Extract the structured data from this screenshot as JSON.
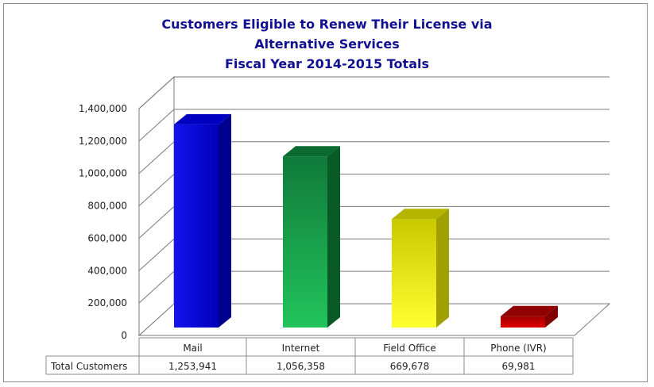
{
  "chart_data": {
    "type": "bar",
    "title_lines": [
      "Customers Eligible to Renew Their License via",
      "Alternative Services",
      "Fiscal Year 2014-2015 Totals"
    ],
    "categories": [
      "Mail",
      "Internet",
      "Field Office",
      "Phone (IVR)"
    ],
    "series": [
      {
        "name": "Total Customers",
        "values": [
          1253941,
          1056358,
          669678,
          69981
        ],
        "value_labels": [
          "1,253,941",
          "1,056,358",
          "669,678",
          "69,981"
        ]
      }
    ],
    "ylim": [
      0,
      1400000
    ],
    "y_ticks": [
      0,
      200000,
      400000,
      600000,
      800000,
      1000000,
      1200000,
      1400000
    ],
    "y_tick_labels": [
      "0",
      "200,000",
      "400,000",
      "600,000",
      "800,000",
      "1,000,000",
      "1,200,000",
      "1,400,000"
    ],
    "grid": true,
    "style": "3d",
    "data_table": true,
    "colors": [
      "#0a0adc",
      "#1dbb55",
      "#f4f41a",
      "#c80000"
    ]
  }
}
